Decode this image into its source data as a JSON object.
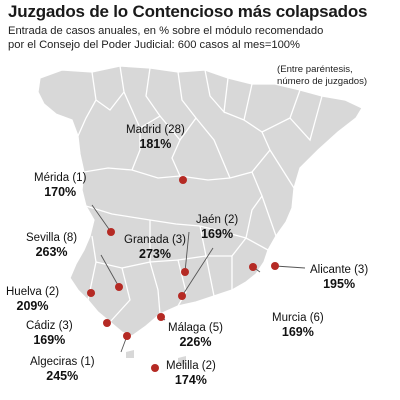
{
  "header": {
    "title": "Juzgados de lo Contencioso más colapsados",
    "subtitle_line1": "Entrada de casos anuales, en % sobre el módulo recomendado",
    "subtitle_line2": "por el Consejo del Poder Judicial: 600 casos al mes=100%"
  },
  "note": {
    "line1": "(Entre paréntesis,",
    "line2": "número de juzgados)"
  },
  "colors": {
    "land": "#d8d8d8",
    "border": "#ffffff",
    "marker": "#b52a24",
    "leader": "#555555"
  },
  "cities": [
    {
      "name": "Madrid (28)",
      "percent": "181%"
    },
    {
      "name": "Mérida (1)",
      "percent": "170%"
    },
    {
      "name": "Jaén (2)",
      "percent": "169%"
    },
    {
      "name": "Sevilla (8)",
      "percent": "263%"
    },
    {
      "name": "Granada (3)",
      "percent": "273%"
    },
    {
      "name": "Alicante (3)",
      "percent": "195%"
    },
    {
      "name": "Huelva (2)",
      "percent": "209%"
    },
    {
      "name": "Cádiz (3)",
      "percent": "169%"
    },
    {
      "name": "Málaga (5)",
      "percent": "226%"
    },
    {
      "name": "Murcia (6)",
      "percent": "169%"
    },
    {
      "name": "Algeciras (1)",
      "percent": "245%"
    },
    {
      "name": "Melilla (2)",
      "percent": "174%"
    }
  ]
}
